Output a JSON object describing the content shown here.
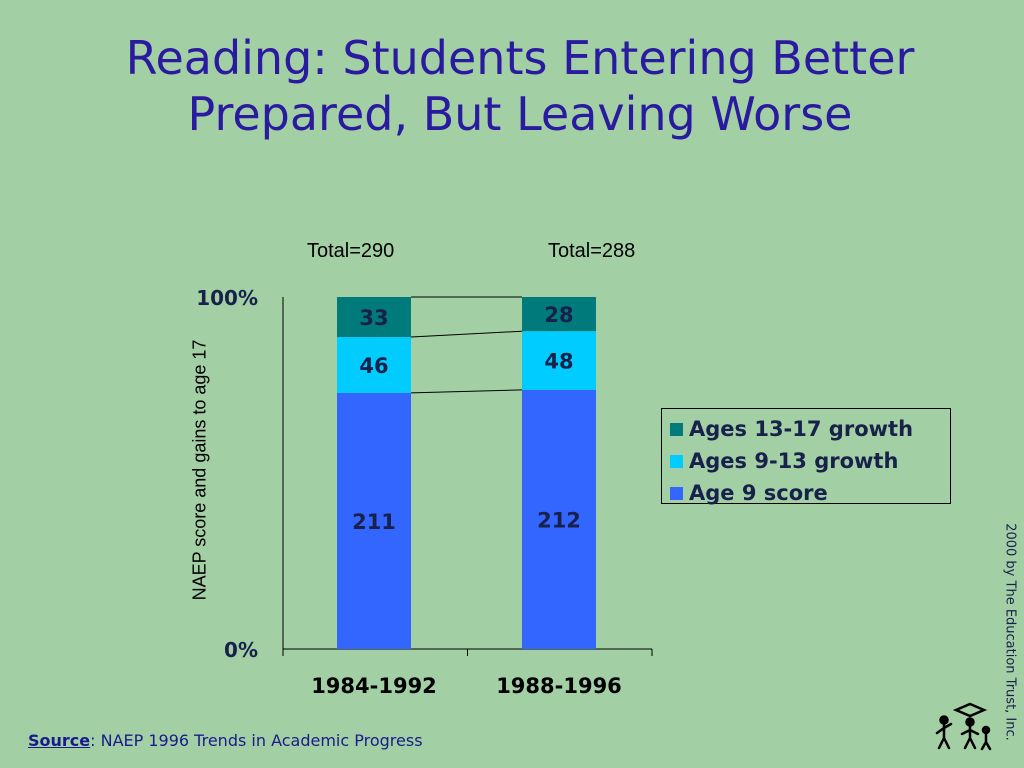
{
  "title": {
    "line1": "Reading: Students Entering Better",
    "line2": "Prepared, But Leaving Worse"
  },
  "totals": [
    "Total=290",
    "Total=288"
  ],
  "copyright": "2000 by The Education Trust, Inc.",
  "source": {
    "label": "Source",
    "text": ": NAEP 1996 Trends in Academic Progress"
  },
  "logo_icon": "education-trust-logo-icon",
  "chart_data": {
    "type": "bar",
    "stacked": "percent",
    "categories": [
      "1984-1992",
      "1988-1996"
    ],
    "series": [
      {
        "name": "Age 9 score",
        "values": [
          211,
          212
        ],
        "color": "#3366ff"
      },
      {
        "name": "Ages 9-13 growth",
        "values": [
          46,
          48
        ],
        "color": "#00ccff"
      },
      {
        "name": "Ages 13-17 growth",
        "values": [
          33,
          28
        ],
        "color": "#007a7a"
      }
    ],
    "ylabel": "NAEP score and gains to age 17",
    "ytick_labels": [
      "0%",
      "100%"
    ],
    "legend_position": "right",
    "legend_order": [
      "Ages 13-17 growth",
      "Ages 9-13 growth",
      "Age 9 score"
    ],
    "series_lines": true
  }
}
